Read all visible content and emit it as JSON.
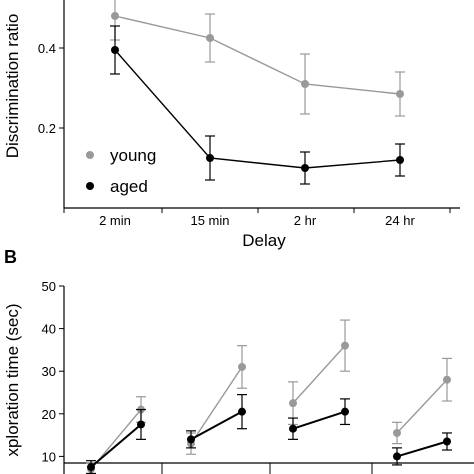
{
  "chart_data": [
    {
      "type": "line",
      "panel": "",
      "xlabel": "Delay",
      "ylabel": "Discrimination ratio",
      "categories": [
        "2 min",
        "15 min",
        "2 hr",
        "24 hr"
      ],
      "yticks": [
        "0.2",
        "0.4"
      ],
      "ytick_values": [
        0.2,
        0.4
      ],
      "ylim": [
        0.0,
        0.52
      ],
      "legend_position": "left",
      "series": [
        {
          "name": "young",
          "color": "#999999",
          "values": [
            0.48,
            0.425,
            0.31,
            0.285
          ],
          "errors": [
            0.06,
            0.06,
            0.075,
            0.055
          ]
        },
        {
          "name": "aged",
          "color": "#000000",
          "values": [
            0.395,
            0.125,
            0.1,
            0.12
          ],
          "errors": [
            0.06,
            0.055,
            0.04,
            0.04
          ]
        }
      ]
    },
    {
      "type": "line",
      "panel": "B",
      "xlabel": "",
      "ylabel": "xploration time (sec)",
      "yticks": [
        "10",
        "20",
        "30",
        "40",
        "50"
      ],
      "ytick_values": [
        10,
        20,
        30,
        40,
        50
      ],
      "ylim": [
        0,
        50
      ],
      "groups": 4,
      "series": [
        {
          "name": "young",
          "color": "#999999",
          "pairs": [
            [
              7,
              21
            ],
            [
              13,
              31
            ],
            [
              22.5,
              36
            ],
            [
              15.5,
              28
            ]
          ],
          "errors": [
            [
              1.5,
              3
            ],
            [
              2.5,
              5
            ],
            [
              5,
              6
            ],
            [
              2.5,
              5
            ]
          ]
        },
        {
          "name": "aged",
          "color": "#000000",
          "pairs": [
            [
              7.5,
              17.5
            ],
            [
              14,
              20.5
            ],
            [
              16.5,
              20.5
            ],
            [
              10,
              13.5
            ]
          ],
          "errors": [
            [
              1.5,
              3.5
            ],
            [
              2,
              4
            ],
            [
              2.5,
              3
            ],
            [
              2,
              2
            ]
          ]
        }
      ]
    }
  ]
}
